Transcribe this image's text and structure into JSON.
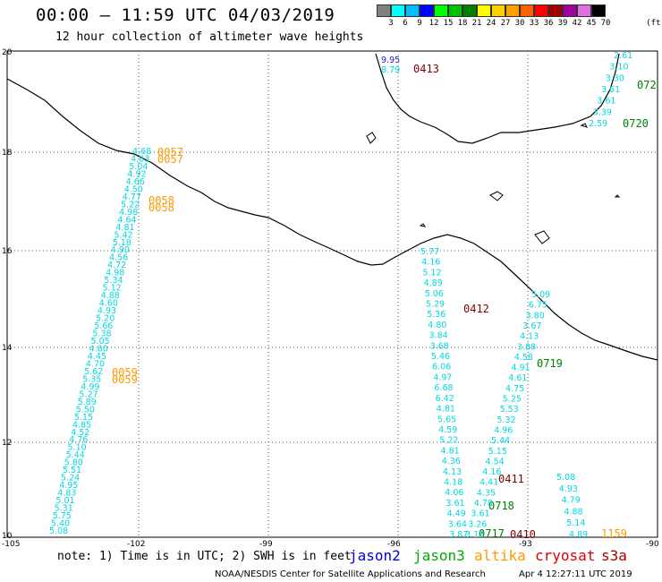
{
  "header": {
    "title": "00:00 – 11:59 UTC 04/03/2019",
    "subtitle": "12 hour collection of altimeter wave heights"
  },
  "color_scale": {
    "labels": [
      "3",
      "6",
      "9",
      "12",
      "15",
      "18",
      "21",
      "24",
      "27",
      "30",
      "33",
      "36",
      "39",
      "42",
      "45",
      "70"
    ],
    "unit": "(ft)",
    "colors": [
      "#808080",
      "#00ffff",
      "#00bfff",
      "#0000ff",
      "#00ff00",
      "#00c000",
      "#008000",
      "#ffff00",
      "#ffd000",
      "#ffa000",
      "#ff6000",
      "#ff0000",
      "#a00000",
      "#a000a0",
      "#e070e0",
      "#000000"
    ]
  },
  "axes": {
    "x_ticks": [
      "-105",
      "-102",
      "-99",
      "-96",
      "-93",
      "-90"
    ],
    "y_ticks": [
      "20",
      "18",
      "16",
      "14",
      "12",
      "10"
    ]
  },
  "labels": {
    "times": [
      {
        "text": "0057",
        "color": "#ff9900"
      },
      {
        "text": "0057",
        "color": "#ff9900"
      },
      {
        "text": "0058",
        "color": "#ff9900"
      },
      {
        "text": "0058",
        "color": "#ff9900"
      },
      {
        "text": "0059",
        "color": "#ff9900"
      },
      {
        "text": "0059",
        "color": "#ff9900"
      },
      {
        "text": "0413",
        "color": "#800000"
      },
      {
        "text": "072",
        "color": "#008000"
      },
      {
        "text": "0720",
        "color": "#008000"
      },
      {
        "text": "0412",
        "color": "#800000"
      },
      {
        "text": "0719",
        "color": "#008000"
      },
      {
        "text": "0411",
        "color": "#800000"
      },
      {
        "text": "0718",
        "color": "#008000"
      },
      {
        "text": "0717",
        "color": "#008000"
      },
      {
        "text": "0410",
        "color": "#800000"
      },
      {
        "text": "1159",
        "color": "#ff9900"
      }
    ],
    "track_left": [
      "5.08",
      "5.40",
      "5.75",
      "5.31",
      "5.01",
      "4.83",
      "4.95",
      "5.24",
      "5.51",
      "5.80",
      "5.44",
      "5.10",
      "4.76",
      "4.52",
      "4.85",
      "5.15",
      "5.50",
      "5.89",
      "5.27",
      "4.99",
      "5.35",
      "5.62",
      "4.70",
      "4.45",
      "4.80",
      "5.05",
      "5.38",
      "5.66",
      "5.20",
      "4.93",
      "4.60",
      "4.88",
      "5.12",
      "5.34",
      "4.98",
      "4.72",
      "4.56",
      "4.90",
      "5.18",
      "5.42",
      "4.81",
      "4.64",
      "4.98",
      "5.22",
      "4.77",
      "4.50",
      "4.66",
      "4.92",
      "5.04",
      "4.83",
      "4.68"
    ],
    "track_mid1": [
      "5.77",
      "4.16",
      "5.12",
      "4.89",
      "5.06",
      "5.29",
      "5.36",
      "4.80",
      "3.84",
      "3.68",
      "5.46",
      "6.06",
      "4.97",
      "6.68",
      "6.42",
      "4.81",
      "5.65",
      "4.59",
      "5.22",
      "4.81",
      "4.36",
      "4.13",
      "4.18",
      "4.06",
      "3.61",
      "4.49",
      "3.64",
      "3.87"
    ],
    "track_mid2": [
      "5.09",
      "6.75",
      "3.80",
      "3.67",
      "4.13",
      "3.88",
      "4.58",
      "4.91",
      "4.61",
      "4.75",
      "5.25",
      "5.53",
      "5.32",
      "4.96",
      "5.44",
      "5.15",
      "4.54",
      "4.16",
      "4.41",
      "4.35",
      "4.78",
      "3.61",
      "3.26",
      "3.12"
    ],
    "track_right": [
      "5.08",
      "4.93",
      "4.79",
      "4.88",
      "5.14",
      "4.89"
    ],
    "track_gulf": [
      "2.61",
      "3.10",
      "3.30",
      "3.61",
      "3.61",
      "3.39",
      "2.59"
    ],
    "track_gulf2": [
      "9.95",
      "8.79"
    ]
  },
  "legend": {
    "note": "note:  1) Time is in UTC;  2) SWH is in feet",
    "items": [
      {
        "name": "jason2",
        "color": "#0000dd"
      },
      {
        "name": "jason3",
        "color": "#00aa00"
      },
      {
        "name": "altika",
        "color": "#ff9900"
      },
      {
        "name": "cryosat",
        "color": "#dd0000"
      },
      {
        "name": "s3a",
        "color": "#aa0000"
      }
    ]
  },
  "footer": {
    "credit": "NOAA/NESDIS Center for Satellite Applications and Research",
    "timestamp": "Apr  4 12:27:11 UTC 2019"
  }
}
